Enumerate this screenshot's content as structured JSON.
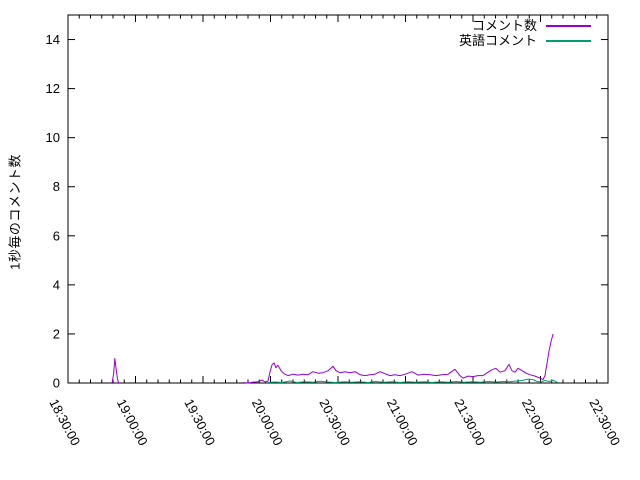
{
  "figure": {
    "background": "#ffffff",
    "text_color": "#000000",
    "axis_color": "#000000"
  },
  "chart_data": {
    "type": "line",
    "title": "",
    "xlabel": "",
    "ylabel": "1秒毎のコメント数",
    "x_tick_labels": [
      "18:30:00",
      "19:00:00",
      "19:30:00",
      "20:00:00",
      "20:30:00",
      "21:00:00",
      "21:30:00",
      "22:00:00",
      "22:30:00"
    ],
    "x_range_minutes": [
      0,
      240
    ],
    "x_unit": "minutes after 18:30:00",
    "x_major_tick_minutes": 30,
    "x_minor_tick_minutes": 5,
    "ylim": [
      0,
      15
    ],
    "y_ticks": [
      0,
      2,
      4,
      6,
      8,
      10,
      12,
      14
    ],
    "grid": false,
    "legend_position": "top-right-inside",
    "series": [
      {
        "name": "コメント数",
        "color": "#9400d3",
        "segments": [
          [
            [
              19.6,
              0
            ],
            [
              20.3,
              0.4
            ],
            [
              20.8,
              1.0
            ],
            [
              21.4,
              0.55
            ],
            [
              22.0,
              0.15
            ],
            [
              22.5,
              0
            ]
          ],
          [
            [
              77.8,
              0.02
            ],
            [
              80.0,
              0.0
            ],
            [
              81.8,
              0.03
            ],
            [
              84.4,
              0.05
            ],
            [
              86.2,
              0.12
            ],
            [
              87.6,
              0.04
            ],
            [
              88.9,
              0.08
            ],
            [
              89.8,
              0.45
            ],
            [
              90.7,
              0.75
            ],
            [
              91.6,
              0.82
            ],
            [
              92.4,
              0.62
            ],
            [
              93.3,
              0.72
            ],
            [
              94.7,
              0.5
            ],
            [
              96.0,
              0.38
            ],
            [
              97.8,
              0.3
            ],
            [
              100.0,
              0.36
            ],
            [
              102.2,
              0.32
            ],
            [
              104.4,
              0.36
            ],
            [
              106.7,
              0.34
            ],
            [
              108.9,
              0.46
            ],
            [
              111.1,
              0.4
            ],
            [
              113.3,
              0.42
            ],
            [
              115.6,
              0.5
            ],
            [
              117.8,
              0.68
            ],
            [
              119.1,
              0.5
            ],
            [
              120.9,
              0.42
            ],
            [
              123.1,
              0.46
            ],
            [
              125.3,
              0.42
            ],
            [
              127.6,
              0.46
            ],
            [
              129.8,
              0.34
            ],
            [
              132.0,
              0.3
            ],
            [
              134.2,
              0.34
            ],
            [
              136.4,
              0.36
            ],
            [
              138.7,
              0.46
            ],
            [
              140.9,
              0.38
            ],
            [
              143.1,
              0.3
            ],
            [
              145.3,
              0.34
            ],
            [
              147.6,
              0.3
            ],
            [
              149.8,
              0.36
            ],
            [
              152.9,
              0.46
            ],
            [
              155.6,
              0.32
            ],
            [
              158.2,
              0.36
            ],
            [
              160.9,
              0.34
            ],
            [
              163.6,
              0.3
            ],
            [
              166.2,
              0.34
            ],
            [
              168.9,
              0.36
            ],
            [
              172.0,
              0.56
            ],
            [
              174.2,
              0.3
            ],
            [
              175.6,
              0.2
            ],
            [
              177.8,
              0.28
            ],
            [
              180.0,
              0.26
            ],
            [
              182.2,
              0.3
            ],
            [
              184.4,
              0.3
            ],
            [
              186.7,
              0.44
            ],
            [
              188.4,
              0.54
            ],
            [
              190.2,
              0.6
            ],
            [
              192.0,
              0.44
            ],
            [
              194.2,
              0.5
            ],
            [
              196.0,
              0.76
            ],
            [
              197.3,
              0.5
            ],
            [
              198.7,
              0.44
            ],
            [
              200.0,
              0.6
            ],
            [
              201.8,
              0.5
            ],
            [
              203.6,
              0.4
            ],
            [
              205.3,
              0.34
            ],
            [
              207.6,
              0.28
            ],
            [
              209.8,
              0.2
            ],
            [
              211.1,
              0.14
            ],
            [
              212.0,
              0.3
            ],
            [
              212.9,
              0.8
            ],
            [
              213.8,
              1.3
            ],
            [
              214.7,
              1.7
            ],
            [
              215.6,
              2.0
            ]
          ]
        ]
      },
      {
        "name": "英語コメント",
        "color": "#009e73",
        "segments": [
          [
            [
              88.9,
              0.02
            ],
            [
              92.0,
              0.04
            ],
            [
              95.1,
              0.02
            ],
            [
              98.7,
              0.08
            ],
            [
              101.8,
              0.02
            ],
            [
              105.3,
              0.05
            ],
            [
              108.9,
              0.03
            ],
            [
              112.0,
              0.07
            ],
            [
              115.6,
              0.04
            ],
            [
              119.1,
              0.02
            ],
            [
              122.7,
              0.05
            ],
            [
              126.2,
              0.03
            ],
            [
              129.8,
              0.05
            ],
            [
              133.3,
              0.02
            ],
            [
              136.9,
              0.06
            ],
            [
              140.4,
              0.03
            ],
            [
              144.0,
              0.05
            ],
            [
              147.6,
              0.02
            ],
            [
              151.1,
              0.05
            ],
            [
              154.7,
              0.03
            ],
            [
              158.2,
              0.05
            ],
            [
              161.8,
              0.02
            ],
            [
              165.3,
              0.05
            ],
            [
              168.9,
              0.03
            ],
            [
              172.4,
              0.06
            ],
            [
              176.0,
              0.03
            ],
            [
              179.6,
              0.05
            ],
            [
              183.1,
              0.03
            ],
            [
              186.7,
              0.06
            ],
            [
              190.2,
              0.04
            ],
            [
              193.8,
              0.06
            ],
            [
              196.4,
              0.05
            ],
            [
              199.1,
              0.08
            ],
            [
              201.8,
              0.1
            ],
            [
              204.4,
              0.16
            ],
            [
              206.7,
              0.14
            ],
            [
              208.4,
              0.06
            ],
            [
              210.2,
              0.04
            ],
            [
              212.0,
              0.1
            ],
            [
              213.8,
              0.06
            ],
            [
              215.6,
              0.12
            ],
            [
              216.9,
              0.04
            ],
            [
              217.8,
              0.02
            ]
          ]
        ]
      }
    ]
  }
}
